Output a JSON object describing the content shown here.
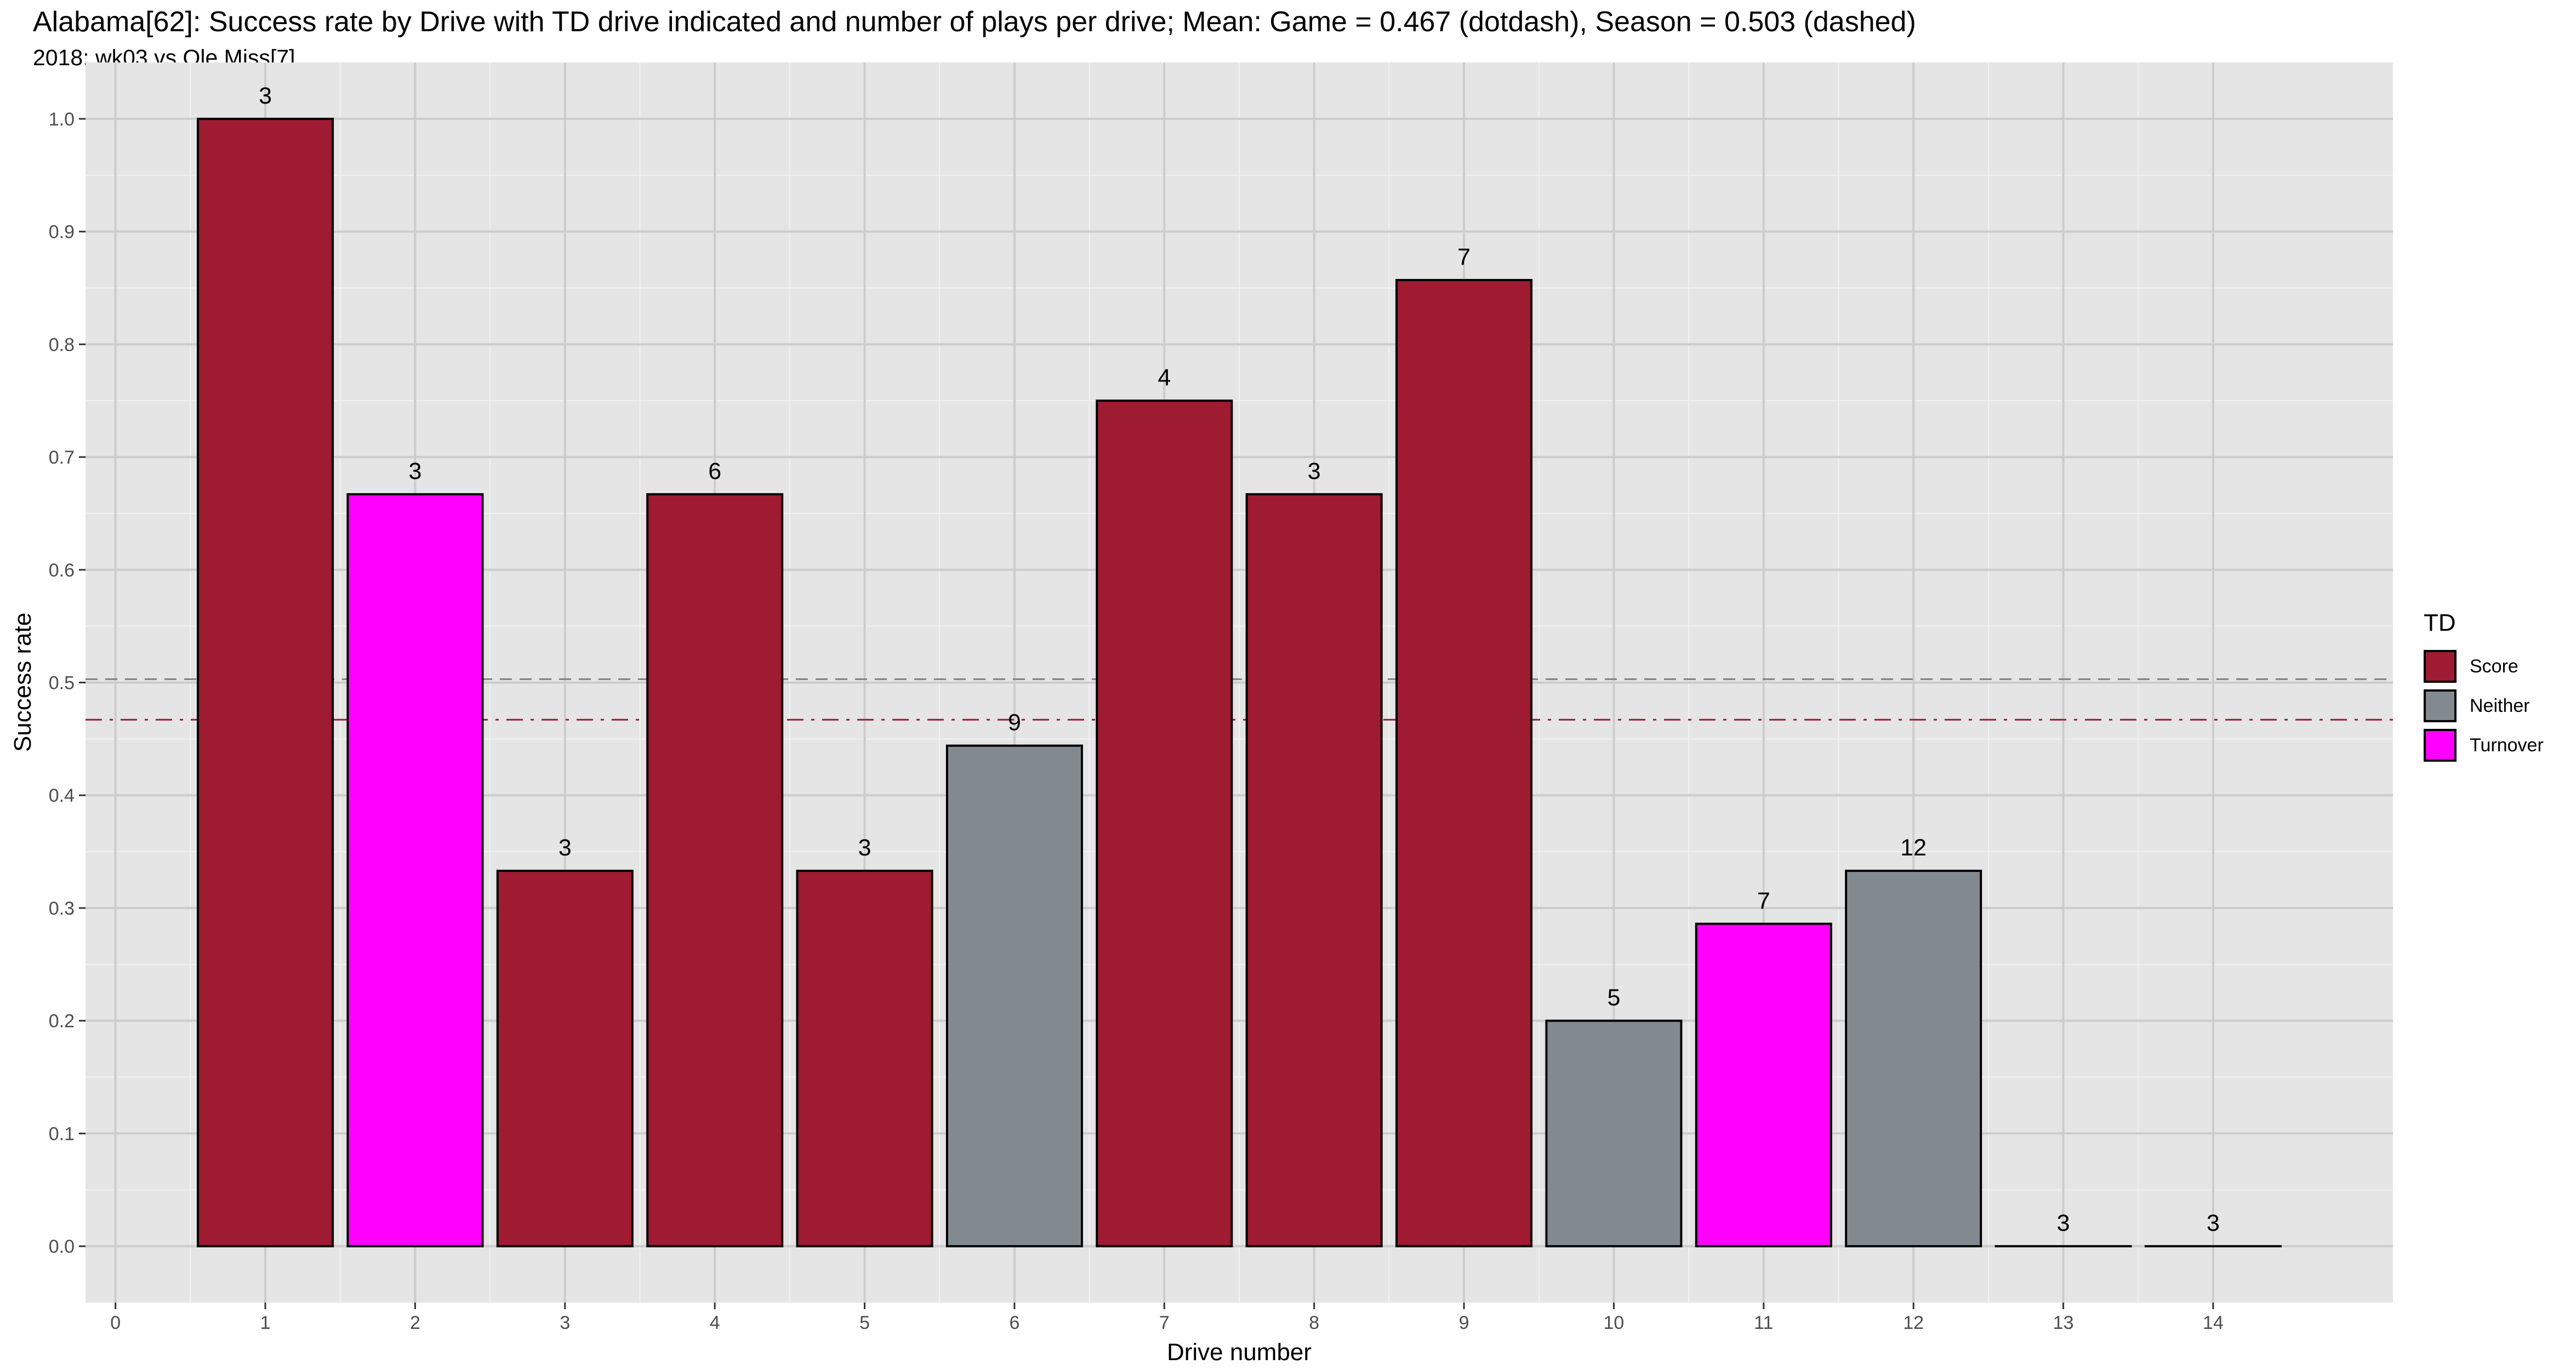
{
  "chart_data": {
    "type": "bar",
    "title": "Alabama[62]: Success rate by Drive with TD drive indicated and number of plays per drive; Mean: Game = 0.467 (dotdash), Season = 0.503 (dashed)",
    "subtitle": "2018: wk03 vs Ole Miss[7]",
    "xlabel": "Drive number",
    "ylabel": "Success rate",
    "x_ticks": [
      "0",
      "1",
      "2",
      "3",
      "4",
      "5",
      "6",
      "7",
      "8",
      "9",
      "10",
      "11",
      "12",
      "13",
      "14"
    ],
    "y_ticks": [
      "0.0",
      "0.1",
      "0.2",
      "0.3",
      "0.4",
      "0.5",
      "0.6",
      "0.7",
      "0.8",
      "0.9",
      "1.0"
    ],
    "xlim": [
      -0.2,
      15.2
    ],
    "ylim": [
      -0.05,
      1.05
    ],
    "grid": true,
    "legend_position": "right",
    "legend_title": "TD",
    "legend": [
      {
        "name": "Score",
        "color": "#9E1B32"
      },
      {
        "name": "Neither",
        "color": "#828A8F"
      },
      {
        "name": "Turnover",
        "color": "#FF00FF"
      }
    ],
    "bars": [
      {
        "drive": 1,
        "value": 1.0,
        "plays": "3",
        "category": "Score"
      },
      {
        "drive": 2,
        "value": 0.667,
        "plays": "3",
        "category": "Turnover"
      },
      {
        "drive": 3,
        "value": 0.333,
        "plays": "3",
        "category": "Score"
      },
      {
        "drive": 4,
        "value": 0.667,
        "plays": "6",
        "category": "Score"
      },
      {
        "drive": 5,
        "value": 0.333,
        "plays": "3",
        "category": "Score"
      },
      {
        "drive": 6,
        "value": 0.444,
        "plays": "9",
        "category": "Neither"
      },
      {
        "drive": 7,
        "value": 0.75,
        "plays": "4",
        "category": "Score"
      },
      {
        "drive": 8,
        "value": 0.667,
        "plays": "3",
        "category": "Score"
      },
      {
        "drive": 9,
        "value": 0.857,
        "plays": "7",
        "category": "Score"
      },
      {
        "drive": 10,
        "value": 0.2,
        "plays": "5",
        "category": "Neither"
      },
      {
        "drive": 11,
        "value": 0.286,
        "plays": "7",
        "category": "Turnover"
      },
      {
        "drive": 12,
        "value": 0.333,
        "plays": "12",
        "category": "Neither"
      },
      {
        "drive": 13,
        "value": 0.0,
        "plays": "3",
        "category": "Score"
      },
      {
        "drive": 14,
        "value": 0.0,
        "plays": "3",
        "category": "Score"
      }
    ],
    "reference_lines": [
      {
        "name": "Game",
        "value": 0.467,
        "style": "dotdash",
        "color": "#9E1B32"
      },
      {
        "name": "Season",
        "value": 0.503,
        "style": "dashed",
        "color": "#808080"
      }
    ]
  }
}
